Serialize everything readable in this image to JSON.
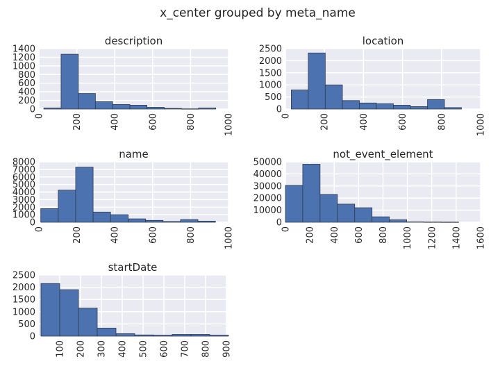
{
  "figure": {
    "title": "x_center grouped by meta_name"
  },
  "colors": {
    "background": "#eaeaf2",
    "grid": "#ffffff",
    "bar": "#4c72b0",
    "bar_edge": "#2e3b4e",
    "text": "#262626"
  },
  "chart_data": [
    {
      "type": "bar",
      "title": "description",
      "bins": [
        [
          26,
          117
        ],
        [
          117,
          208
        ],
        [
          208,
          298
        ],
        [
          298,
          389
        ],
        [
          389,
          480
        ],
        [
          480,
          570
        ],
        [
          570,
          661
        ],
        [
          661,
          752
        ],
        [
          752,
          842
        ],
        [
          842,
          933
        ]
      ],
      "values": [
        25,
        1270,
        360,
        170,
        105,
        90,
        40,
        15,
        5,
        25
      ],
      "xlim": [
        0,
        1000
      ],
      "ylim": [
        0,
        1400
      ],
      "xticks": [
        "0",
        "200",
        "400",
        "600",
        "800",
        "1000"
      ],
      "xtick_values": [
        0,
        200,
        400,
        600,
        800,
        1000
      ],
      "yticks": [
        "0",
        "200",
        "400",
        "600",
        "800",
        "1000",
        "1200",
        "1400"
      ],
      "ytick_values": [
        0,
        200,
        400,
        600,
        800,
        1000,
        1200,
        1400
      ]
    },
    {
      "type": "bar",
      "title": "location",
      "bins": [
        [
          30,
          117
        ],
        [
          117,
          204
        ],
        [
          204,
          292
        ],
        [
          292,
          379
        ],
        [
          379,
          466
        ],
        [
          466,
          553
        ],
        [
          553,
          640
        ],
        [
          640,
          728
        ],
        [
          728,
          815
        ],
        [
          815,
          902
        ]
      ],
      "values": [
        790,
        2320,
        1000,
        350,
        250,
        220,
        160,
        100,
        390,
        60
      ],
      "xlim": [
        0,
        1000
      ],
      "ylim": [
        0,
        2500
      ],
      "xticks": [
        "0",
        "200",
        "400",
        "600",
        "800",
        "1000"
      ],
      "xtick_values": [
        0,
        200,
        400,
        600,
        800,
        1000
      ],
      "yticks": [
        "0",
        "500",
        "1000",
        "1500",
        "2000",
        "2500"
      ],
      "ytick_values": [
        0,
        500,
        1000,
        1500,
        2000,
        2500
      ]
    },
    {
      "type": "bar",
      "title": "name",
      "bins": [
        [
          10,
          102
        ],
        [
          102,
          194
        ],
        [
          194,
          286
        ],
        [
          286,
          378
        ],
        [
          378,
          471
        ],
        [
          471,
          563
        ],
        [
          563,
          655
        ],
        [
          655,
          747
        ],
        [
          747,
          839
        ],
        [
          839,
          931
        ]
      ],
      "values": [
        1800,
        4250,
        7300,
        1350,
        1000,
        450,
        250,
        100,
        350,
        150
      ],
      "xlim": [
        0,
        1000
      ],
      "ylim": [
        0,
        8000
      ],
      "xticks": [
        "0",
        "200",
        "400",
        "600",
        "800",
        "1000"
      ],
      "xtick_values": [
        0,
        200,
        400,
        600,
        800,
        1000
      ],
      "yticks": [
        "0",
        "1000",
        "2000",
        "3000",
        "4000",
        "5000",
        "6000",
        "7000",
        "8000"
      ],
      "ytick_values": [
        0,
        1000,
        2000,
        3000,
        4000,
        5000,
        6000,
        7000,
        8000
      ]
    },
    {
      "type": "bar",
      "title": "not_event_element",
      "bins": [
        [
          0,
          142
        ],
        [
          142,
          284
        ],
        [
          284,
          426
        ],
        [
          426,
          568
        ],
        [
          568,
          710
        ],
        [
          710,
          852
        ],
        [
          852,
          994
        ],
        [
          994,
          1136
        ],
        [
          1136,
          1278
        ],
        [
          1278,
          1420
        ]
      ],
      "values": [
        30500,
        48000,
        23000,
        15000,
        12000,
        4500,
        2000,
        300,
        200,
        150
      ],
      "xlim": [
        0,
        1600
      ],
      "ylim": [
        0,
        50000
      ],
      "xticks": [
        "0",
        "200",
        "400",
        "600",
        "800",
        "1000",
        "1200",
        "1400",
        "1600"
      ],
      "xtick_values": [
        0,
        200,
        400,
        600,
        800,
        1000,
        1200,
        1400,
        1600
      ],
      "yticks": [
        "0",
        "10000",
        "20000",
        "30000",
        "40000",
        "50000"
      ],
      "ytick_values": [
        0,
        10000,
        20000,
        30000,
        40000,
        50000
      ]
    },
    {
      "type": "bar",
      "title": "startDate",
      "bins": [
        [
          10,
          100
        ],
        [
          100,
          190
        ],
        [
          190,
          280
        ],
        [
          280,
          370
        ],
        [
          370,
          460
        ],
        [
          460,
          550
        ],
        [
          550,
          640
        ],
        [
          640,
          730
        ],
        [
          730,
          820
        ],
        [
          820,
          910
        ]
      ],
      "values": [
        2150,
        1900,
        1150,
        330,
        100,
        50,
        40,
        70,
        70,
        40
      ],
      "xlim": [
        0,
        900
      ],
      "ylim": [
        0,
        2500
      ],
      "xticks": [
        "100",
        "200",
        "300",
        "400",
        "500",
        "600",
        "700",
        "800",
        "900"
      ],
      "xtick_values": [
        100,
        200,
        300,
        400,
        500,
        600,
        700,
        800,
        900
      ],
      "yticks": [
        "0",
        "500",
        "1000",
        "1500",
        "2000",
        "2500"
      ],
      "ytick_values": [
        0,
        500,
        1000,
        1500,
        2000,
        2500
      ]
    }
  ]
}
